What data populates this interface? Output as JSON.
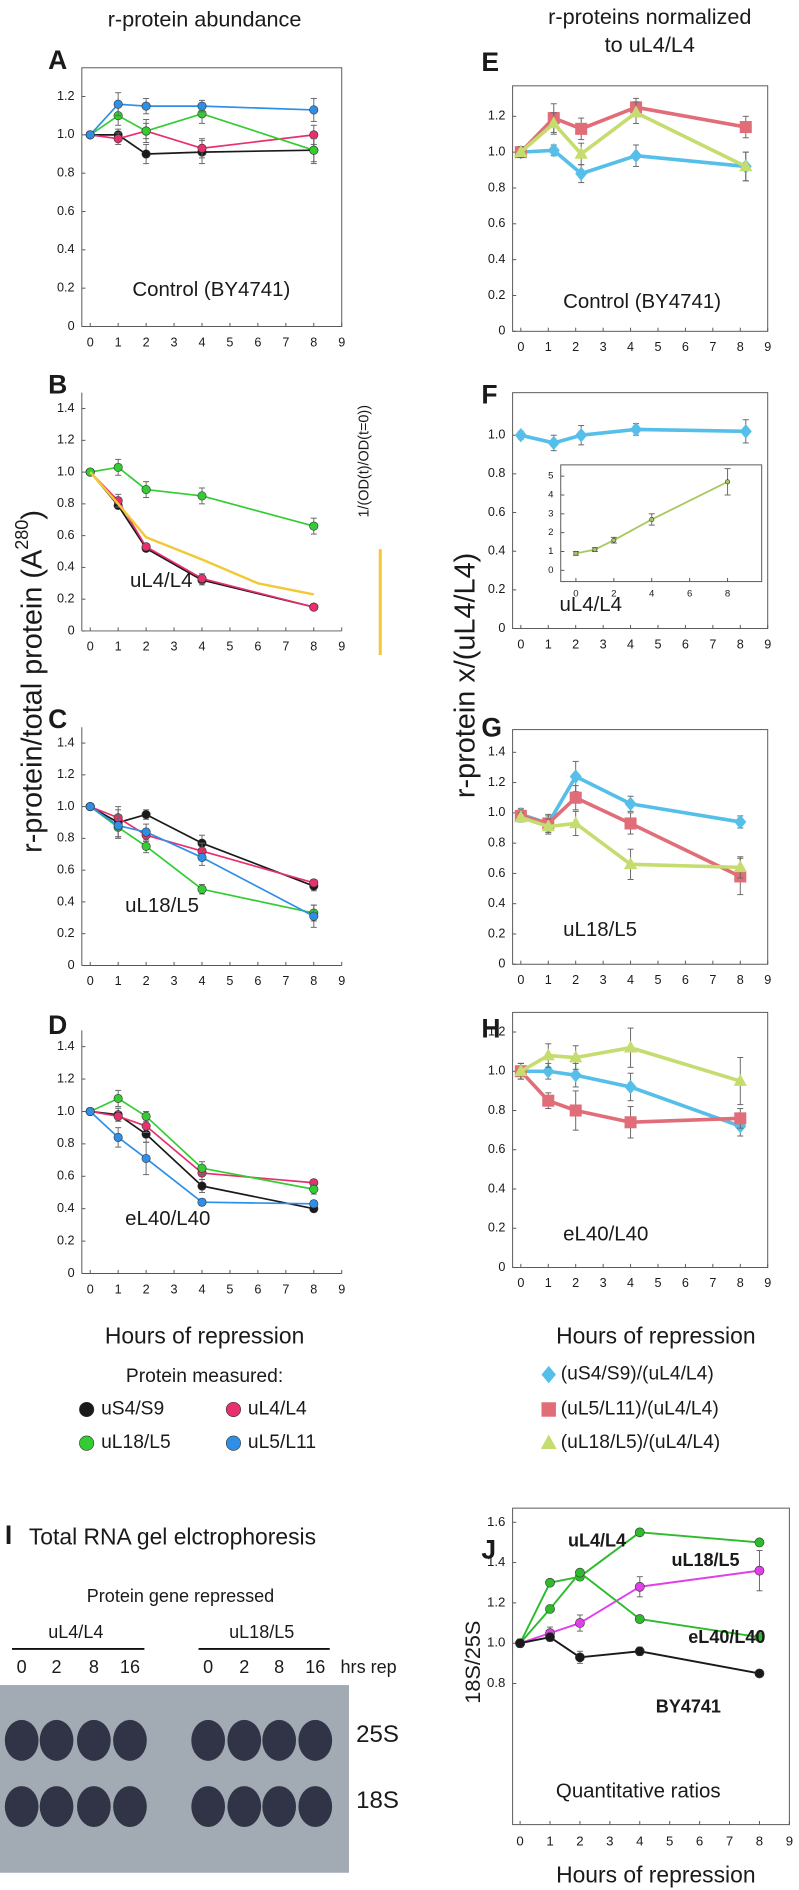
{
  "figure": {
    "left_header": "r-protein abundance",
    "right_header": [
      "r-proteins normalized",
      "to uL4/L4"
    ],
    "left_ylabel": [
      "r-protein/total protein (A",
      "280",
      ")"
    ],
    "right_ylabel": "r-protein x/(uL4/L4)"
  },
  "chart_data": [
    {
      "type": "line",
      "panel": "A",
      "label": "Control (BY4741)",
      "frame": true,
      "legend_title": "Protein measured:",
      "xlim": [
        -0.3,
        9
      ],
      "xticks": [
        0,
        1,
        2,
        3,
        4,
        5,
        6,
        7,
        8,
        9
      ],
      "ylim": [
        0,
        1.35
      ],
      "yticks": [
        0,
        0.2,
        0.4,
        0.6,
        0.8,
        {
          "value": 1,
          "label": "1.0"
        },
        1.2
      ],
      "x": [
        0,
        1,
        2,
        4,
        8
      ],
      "series": [
        {
          "name": "uS4/S9",
          "color": "#1a1a1a",
          "marker": "circle",
          "values": [
            1.0,
            1.0,
            0.9,
            0.91,
            0.92
          ],
          "errors": [
            0,
            0.03,
            0.05,
            0.06,
            0.07
          ]
        },
        {
          "name": "uL4/L4",
          "color": "#e8306e",
          "marker": "circle",
          "values": [
            1.0,
            0.98,
            1.02,
            0.93,
            1.0
          ],
          "errors": [
            0,
            0.03,
            0.04,
            0.05,
            0.05
          ]
        },
        {
          "name": "uL18/L5",
          "color": "#33cc33",
          "marker": "circle",
          "values": [
            1.0,
            1.1,
            1.02,
            1.11,
            0.92
          ],
          "errors": [
            0,
            0.05,
            0.06,
            0.05,
            0.06
          ]
        },
        {
          "name": "uL5/L11",
          "color": "#2f8fe6",
          "marker": "circle",
          "values": [
            1.0,
            1.16,
            1.15,
            1.15,
            1.13
          ],
          "errors": [
            0,
            0.06,
            0.04,
            0.03,
            0.06
          ]
        }
      ]
    },
    {
      "type": "line",
      "panel": "B",
      "label": "uL4/L4",
      "frame": false,
      "xlim": [
        -0.3,
        9
      ],
      "xticks": [
        0,
        1,
        2,
        3,
        4,
        5,
        6,
        7,
        8,
        9
      ],
      "ylim": [
        0,
        1.5
      ],
      "yticks": [
        0,
        0.2,
        0.4,
        0.6,
        0.8,
        {
          "value": 1,
          "label": "1.0"
        },
        1.2,
        1.4
      ],
      "x": [
        0,
        1,
        2,
        4,
        8
      ],
      "series": [
        {
          "name": "uS4/S9",
          "color": "#1a1a1a",
          "marker": "circle",
          "values": [
            1.0,
            0.79,
            0.52,
            0.32,
            0.15
          ],
          "errors": [
            0,
            0.02,
            0.02,
            0.03,
            0.01
          ]
        },
        {
          "name": "uL4/L4",
          "color": "#e8306e",
          "marker": "circle",
          "values": [
            1.0,
            0.82,
            0.53,
            0.33,
            0.15
          ],
          "errors": [
            0,
            0.04,
            0.02,
            0.03,
            0.01
          ]
        },
        {
          "name": "uL18/L5",
          "color": "#33cc33",
          "marker": "circle",
          "values": [
            1.0,
            1.03,
            0.89,
            0.85,
            0.66
          ],
          "errors": [
            0,
            0.05,
            0.05,
            0.05,
            0.05
          ]
        },
        {
          "name": "1/(OD(t)/OD(t=0))",
          "color": "#f2c834",
          "marker": "none",
          "x": [
            0,
            1,
            2,
            4,
            6,
            8
          ],
          "values": [
            1.0,
            0.8,
            0.59,
            0.45,
            0.3,
            0.23
          ]
        }
      ]
    },
    {
      "type": "line",
      "panel": "C",
      "label": "uL18/L5",
      "frame": false,
      "xlim": [
        -0.3,
        9
      ],
      "xticks": [
        0,
        1,
        2,
        3,
        4,
        5,
        6,
        7,
        8,
        9
      ],
      "ylim": [
        0,
        1.5
      ],
      "yticks": [
        0,
        0.2,
        0.4,
        0.6,
        0.8,
        {
          "value": 1,
          "label": "1.0"
        },
        1.2,
        1.4
      ],
      "x": [
        0,
        1,
        2,
        4,
        8
      ],
      "series": [
        {
          "name": "uS4/S9",
          "color": "#1a1a1a",
          "marker": "circle",
          "values": [
            1.0,
            0.9,
            0.95,
            0.77,
            0.5
          ],
          "errors": [
            0,
            0.1,
            0.03,
            0.05,
            0.03
          ]
        },
        {
          "name": "uL4/L4",
          "color": "#e8306e",
          "marker": "circle",
          "values": [
            1.0,
            0.93,
            0.82,
            0.72,
            0.52
          ],
          "errors": [
            0,
            0.05,
            0.04,
            0.05,
            0.02
          ]
        },
        {
          "name": "uL18/L5",
          "color": "#33cc33",
          "marker": "circle",
          "values": [
            1.0,
            0.87,
            0.75,
            0.48,
            0.33
          ],
          "errors": [
            0,
            0.06,
            0.04,
            0.03,
            0.05
          ]
        },
        {
          "name": "uL5/L11",
          "color": "#2f8fe6",
          "marker": "circle",
          "values": [
            1.0,
            0.88,
            0.84,
            0.68,
            0.31
          ],
          "errors": [
            0,
            0.07,
            0.05,
            0.05,
            0.07
          ]
        }
      ]
    },
    {
      "type": "line",
      "panel": "D",
      "label": "eL40/L40",
      "frame": false,
      "xlabel": "Hours of repression",
      "xlim": [
        -0.3,
        9
      ],
      "xticks": [
        0,
        1,
        2,
        3,
        4,
        5,
        6,
        7,
        8,
        9
      ],
      "ylim": [
        0,
        1.5
      ],
      "yticks": [
        0,
        0.2,
        0.4,
        0.6,
        0.8,
        {
          "value": 1,
          "label": "1.0"
        },
        1.2,
        1.4
      ],
      "x": [
        0,
        1,
        2,
        4,
        8
      ],
      "series": [
        {
          "name": "uS4/S9",
          "color": "#1a1a1a",
          "marker": "circle",
          "values": [
            1.0,
            0.98,
            0.86,
            0.54,
            0.4
          ],
          "errors": [
            0,
            0.04,
            0.05,
            0.04,
            0.02
          ]
        },
        {
          "name": "uL4/L4",
          "color": "#e8306e",
          "marker": "circle",
          "values": [
            1.0,
            0.97,
            0.91,
            0.62,
            0.56
          ],
          "errors": [
            0,
            0.03,
            0.04,
            0.04,
            0.02
          ]
        },
        {
          "name": "uL18/L5",
          "color": "#33cc33",
          "marker": "circle",
          "values": [
            1.0,
            1.08,
            0.97,
            0.65,
            0.52
          ],
          "errors": [
            0,
            0.05,
            0.03,
            0.04,
            0.03
          ]
        },
        {
          "name": "uL5/L11",
          "color": "#2f8fe6",
          "marker": "circle",
          "values": [
            1.0,
            0.84,
            0.71,
            0.44,
            0.43
          ],
          "errors": [
            0,
            0.06,
            0.1,
            0.02,
            0.02
          ]
        }
      ]
    },
    {
      "type": "line",
      "panel": "E",
      "label": "Control (BY4741)",
      "frame": true,
      "xlim": [
        -0.3,
        9
      ],
      "xticks": [
        0,
        1,
        2,
        3,
        4,
        5,
        6,
        7,
        8,
        9
      ],
      "ylim": [
        0,
        1.37
      ],
      "yticks": [
        0,
        0.2,
        0.4,
        0.6,
        0.8,
        {
          "value": 1,
          "label": "1.0"
        },
        1.2
      ],
      "x": [
        0,
        1.2,
        2.2,
        4.2,
        8.2
      ],
      "series": [
        {
          "name": "(uS4/S9)/(uL4/L4)",
          "color": "#56bfe9",
          "marker": "diamond",
          "values": [
            1.0,
            1.01,
            0.88,
            0.98,
            0.92
          ],
          "errors": [
            0.03,
            0.03,
            0.05,
            0.06,
            0.08
          ]
        },
        {
          "name": "(uL5/L11)/(uL4/L4)",
          "color": "#e06d78",
          "marker": "square",
          "values": [
            1.0,
            1.19,
            1.13,
            1.25,
            1.14
          ],
          "errors": [
            0.03,
            0.08,
            0.06,
            0.05,
            0.06
          ]
        },
        {
          "name": "(uL18/L5)/(uL4/L4)",
          "color": "#c5dc6e",
          "marker": "triangle",
          "values": [
            1.0,
            1.16,
            0.99,
            1.22,
            0.92
          ],
          "errors": [
            0.03,
            0.06,
            0.06,
            0.06,
            0.08
          ]
        }
      ]
    },
    {
      "type": "line",
      "panel": "F",
      "label": "uL4/L4",
      "frame": true,
      "xlim": [
        -0.3,
        9
      ],
      "xticks": [
        0,
        1,
        2,
        3,
        4,
        5,
        6,
        7,
        8,
        9
      ],
      "ylim": [
        0,
        1.22
      ],
      "yticks": [
        0,
        0.2,
        0.4,
        0.6,
        0.8,
        {
          "value": 1,
          "label": "1.0"
        }
      ],
      "x": [
        0,
        1.2,
        2.2,
        4.2,
        8.2
      ],
      "series": [
        {
          "name": "(uS4/S9)/(uL4/L4)",
          "color": "#56bfe9",
          "marker": "diamond",
          "values": [
            1.0,
            0.96,
            1.0,
            1.03,
            1.02
          ],
          "errors": [
            0.02,
            0.04,
            0.05,
            0.03,
            0.06
          ]
        }
      ]
    },
    {
      "type": "line",
      "frame": true,
      "xlim": [
        -0.8,
        9.8
      ],
      "xticks": [
        0,
        2,
        4,
        6,
        8
      ],
      "ylim": [
        -0.6,
        5.6
      ],
      "yticks": [
        0,
        1,
        2,
        3,
        4,
        5
      ],
      "x": [
        0,
        1,
        2,
        4,
        8
      ],
      "series": [
        {
          "color": "#a8c860",
          "marker": "circle",
          "values": [
            0.9,
            1.1,
            1.6,
            2.7,
            4.7
          ],
          "errors": [
            0.1,
            0.1,
            0.15,
            0.3,
            0.7
          ]
        }
      ]
    },
    {
      "type": "line",
      "panel": "G",
      "label": "uL18/L5",
      "frame": true,
      "xlim": [
        -0.3,
        9
      ],
      "xticks": [
        0,
        1,
        2,
        3,
        4,
        5,
        6,
        7,
        8,
        9
      ],
      "ylim": [
        0,
        1.55
      ],
      "yticks": [
        0,
        0.2,
        0.4,
        0.6,
        0.8,
        {
          "value": 1,
          "label": "1.0"
        },
        1.2,
        1.4
      ],
      "x": [
        0,
        1,
        2,
        4,
        8
      ],
      "series": [
        {
          "name": "(uS4/S9)/(uL4/L4)",
          "color": "#56bfe9",
          "marker": "diamond",
          "values": [
            0.99,
            0.93,
            1.24,
            1.06,
            0.94
          ],
          "errors": [
            0.04,
            0.06,
            0.1,
            0.05,
            0.04
          ]
        },
        {
          "name": "(uL5/L11)/(uL4/L4)",
          "color": "#e06d78",
          "marker": "square",
          "values": [
            0.98,
            0.93,
            1.1,
            0.93,
            0.58
          ],
          "errors": [
            0.04,
            0.05,
            0.08,
            0.07,
            0.12
          ]
        },
        {
          "name": "(uL18/L5)/(uL4/L4)",
          "color": "#c5dc6e",
          "marker": "triangle",
          "values": [
            0.97,
            0.91,
            0.93,
            0.66,
            0.64
          ],
          "errors": [
            0.03,
            0.05,
            0.08,
            0.1,
            0.07
          ]
        }
      ]
    },
    {
      "type": "line",
      "panel": "H",
      "label": "eL40/L40",
      "frame": true,
      "xlabel": "Hours of repression",
      "xlim": [
        -0.3,
        9
      ],
      "xticks": [
        0,
        1,
        2,
        3,
        4,
        5,
        6,
        7,
        8,
        9
      ],
      "ylim": [
        0,
        1.3
      ],
      "yticks": [
        0,
        0.2,
        0.4,
        0.6,
        0.8,
        {
          "value": 1,
          "label": "1.0"
        },
        1.2
      ],
      "x": [
        0,
        1,
        2,
        4,
        8
      ],
      "series": [
        {
          "name": "(uS4/S9)/(uL4/L4)",
          "color": "#56bfe9",
          "marker": "diamond",
          "values": [
            1.0,
            1.0,
            0.98,
            0.92,
            0.72
          ],
          "errors": [
            0.04,
            0.04,
            0.06,
            0.07,
            0.05
          ]
        },
        {
          "name": "(uL5/L11)/(uL4/L4)",
          "color": "#e06d78",
          "marker": "square",
          "values": [
            1.0,
            0.85,
            0.8,
            0.74,
            0.76
          ],
          "errors": [
            0.04,
            0.04,
            0.1,
            0.08,
            0.05
          ]
        },
        {
          "name": "(uL18/L5)/(uL4/L4)",
          "color": "#c5dc6e",
          "marker": "triangle",
          "values": [
            1.0,
            1.08,
            1.07,
            1.12,
            0.95
          ],
          "errors": [
            0.04,
            0.06,
            0.06,
            0.1,
            0.12
          ]
        }
      ]
    },
    {
      "type": "line",
      "panel": "J",
      "label": "Quantitative ratios",
      "frame": true,
      "xlabel": "Hours of repression",
      "ylabel": "18S/25S",
      "xlim": [
        -0.25,
        9
      ],
      "xticks": [
        0,
        1,
        2,
        3,
        4,
        5,
        6,
        7,
        8,
        9
      ],
      "ylim": [
        0.1,
        1.67
      ],
      "yticks": [
        0.8,
        {
          "value": 1,
          "label": "1.0"
        },
        1.2,
        1.4,
        1.6
      ],
      "x": [
        0,
        1,
        2,
        4,
        8
      ],
      "series": [
        {
          "name": "uL4/L4",
          "color": "#2dbb2d",
          "marker": "circle",
          "values": [
            1.0,
            1.3,
            1.33,
            1.55,
            1.5
          ]
        },
        {
          "name": "uL18/L5",
          "color": "#e040e8",
          "marker": "circle",
          "values": [
            1.0,
            1.05,
            1.1,
            1.28,
            1.36
          ],
          "errors": [
            0.02,
            0.03,
            0.04,
            0.05,
            0.1
          ]
        },
        {
          "name": "eL40/L40",
          "color": "#2dbb2d",
          "marker": "circle",
          "values": [
            1.0,
            1.17,
            1.35,
            1.12,
            1.03
          ]
        },
        {
          "name": "BY4741",
          "color": "#1a1a1a",
          "marker": "circle",
          "values": [
            1.0,
            1.03,
            0.93,
            0.96,
            0.85
          ],
          "errors": [
            0.02,
            0.02,
            0.03,
            0.02,
            0.01
          ]
        }
      ]
    }
  ],
  "gel": {
    "panel": "I",
    "title": "Total RNA gel elctrophoresis",
    "subtitle": "Protein gene repressed",
    "groups": [
      "uL4/L4",
      "uL18/L5"
    ],
    "lanes": [
      "0",
      "2",
      "8",
      "16"
    ],
    "lane_unit": "hrs rep",
    "bands": [
      "25S",
      "18S"
    ]
  }
}
